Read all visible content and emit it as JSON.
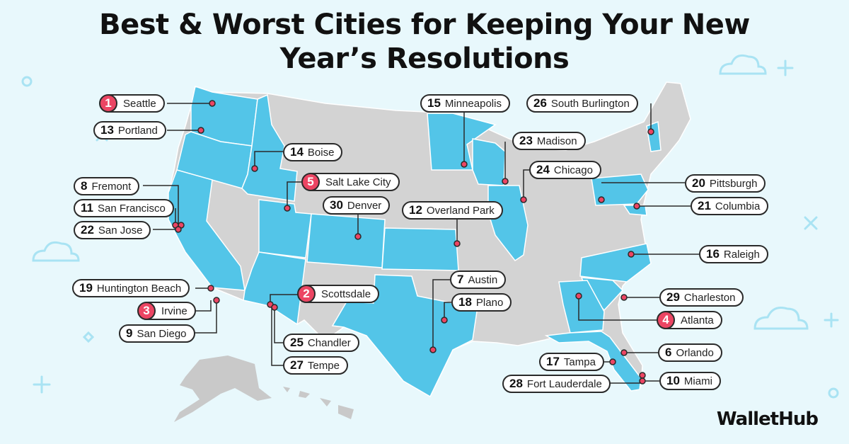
{
  "title_line1": "Best & Worst Cities for Keeping Your New",
  "title_line2": "Year’s Resolutions",
  "brand": "WalletHub",
  "colors": {
    "highlight_state": "#53c5e8",
    "other_state": "#d3d3d3",
    "marker": "#ec4563",
    "background": "#e8f8fc"
  },
  "cities": [
    {
      "rank": "1",
      "name": "Seattle",
      "top": true
    },
    {
      "rank": "13",
      "name": "Portland",
      "top": false
    },
    {
      "rank": "14",
      "name": "Boise",
      "top": false
    },
    {
      "rank": "8",
      "name": "Fremont",
      "top": false
    },
    {
      "rank": "5",
      "name": "Salt Lake City",
      "top": true
    },
    {
      "rank": "11",
      "name": "San Francisco",
      "top": false
    },
    {
      "rank": "30",
      "name": "Denver",
      "top": false
    },
    {
      "rank": "22",
      "name": "San Jose",
      "top": false
    },
    {
      "rank": "12",
      "name": "Overland Park",
      "top": false
    },
    {
      "rank": "15",
      "name": "Minneapolis",
      "top": false
    },
    {
      "rank": "26",
      "name": "South Burlington",
      "top": false
    },
    {
      "rank": "23",
      "name": "Madison",
      "top": false
    },
    {
      "rank": "24",
      "name": "Chicago",
      "top": false
    },
    {
      "rank": "20",
      "name": "Pittsburgh",
      "top": false
    },
    {
      "rank": "21",
      "name": "Columbia",
      "top": false
    },
    {
      "rank": "16",
      "name": "Raleigh",
      "top": false
    },
    {
      "rank": "19",
      "name": "Huntington Beach",
      "top": false
    },
    {
      "rank": "2",
      "name": "Scottsdale",
      "top": true
    },
    {
      "rank": "3",
      "name": "Irvine",
      "top": true
    },
    {
      "rank": "7",
      "name": "Austin",
      "top": false
    },
    {
      "rank": "18",
      "name": "Plano",
      "top": false
    },
    {
      "rank": "29",
      "name": "Charleston",
      "top": false
    },
    {
      "rank": "9",
      "name": "San Diego",
      "top": false
    },
    {
      "rank": "4",
      "name": "Atlanta",
      "top": true
    },
    {
      "rank": "25",
      "name": "Chandler",
      "top": false
    },
    {
      "rank": "6",
      "name": "Orlando",
      "top": false
    },
    {
      "rank": "17",
      "name": "Tampa",
      "top": false
    },
    {
      "rank": "27",
      "name": "Tempe",
      "top": false
    },
    {
      "rank": "28",
      "name": "Fort Lauderdale",
      "top": false
    },
    {
      "rank": "10",
      "name": "Miami",
      "top": false
    }
  ]
}
